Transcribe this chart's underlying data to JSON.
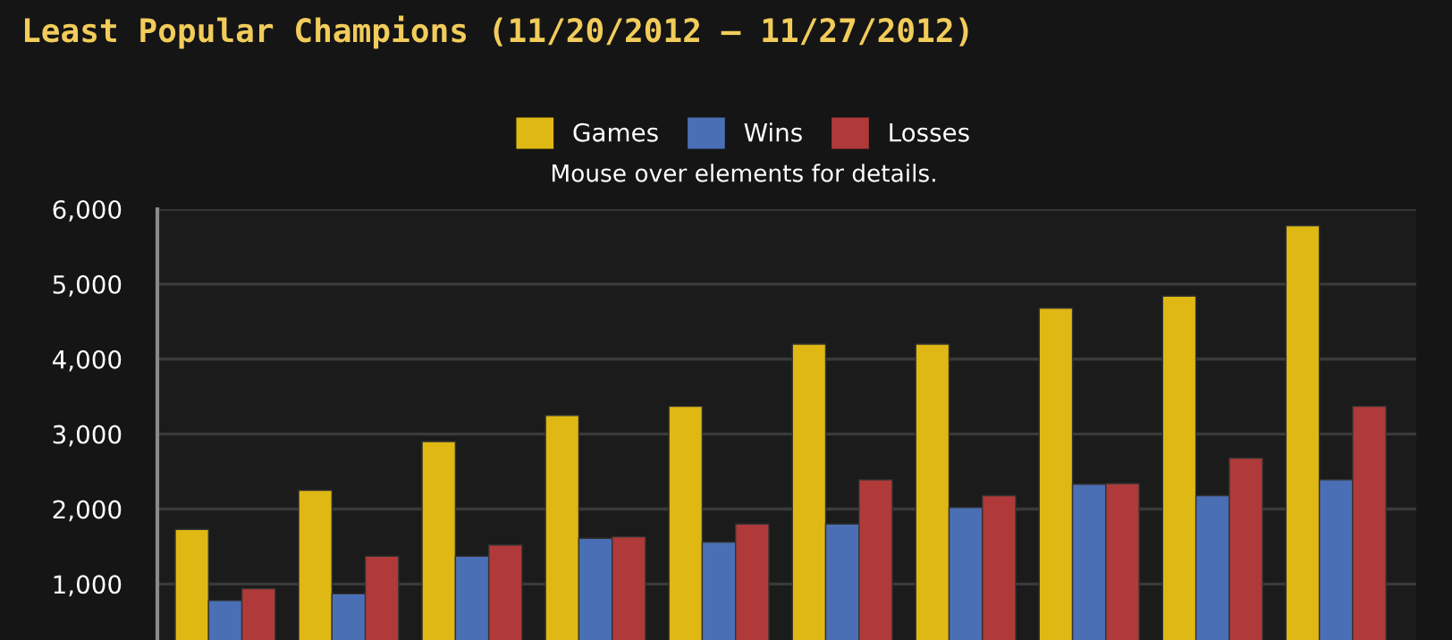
{
  "chart_data": {
    "type": "bar",
    "title": "Least Popular Champions (11/20/2012 – 11/27/2012)",
    "subtitle": "Mouse over elements for details.",
    "categories": [
      null,
      null,
      null,
      null,
      null,
      null,
      null,
      null,
      null,
      null
    ],
    "series": [
      {
        "name": "Games",
        "color": "#e0b814",
        "values": [
          1730,
          2250,
          2900,
          3250,
          3370,
          4200,
          4200,
          4680,
          4840,
          5780
        ]
      },
      {
        "name": "Wins",
        "color": "#4a6fb5",
        "values": [
          780,
          870,
          1370,
          1610,
          1560,
          1800,
          2020,
          2330,
          2180,
          2390
        ]
      },
      {
        "name": "Losses",
        "color": "#b03a3a",
        "values": [
          940,
          1370,
          1520,
          1630,
          1800,
          2390,
          2180,
          2340,
          2680,
          3370
        ]
      }
    ],
    "ylim": [
      254,
      6000
    ],
    "yticks": [
      {
        "value": 1000,
        "label": "1,000"
      },
      {
        "value": 2000,
        "label": "2,000"
      },
      {
        "value": 3000,
        "label": "3,000"
      },
      {
        "value": 4000,
        "label": "4,000"
      },
      {
        "value": 5000,
        "label": "5,000"
      },
      {
        "value": 6000,
        "label": "6,000"
      }
    ],
    "grid": "y",
    "legend": "top"
  }
}
